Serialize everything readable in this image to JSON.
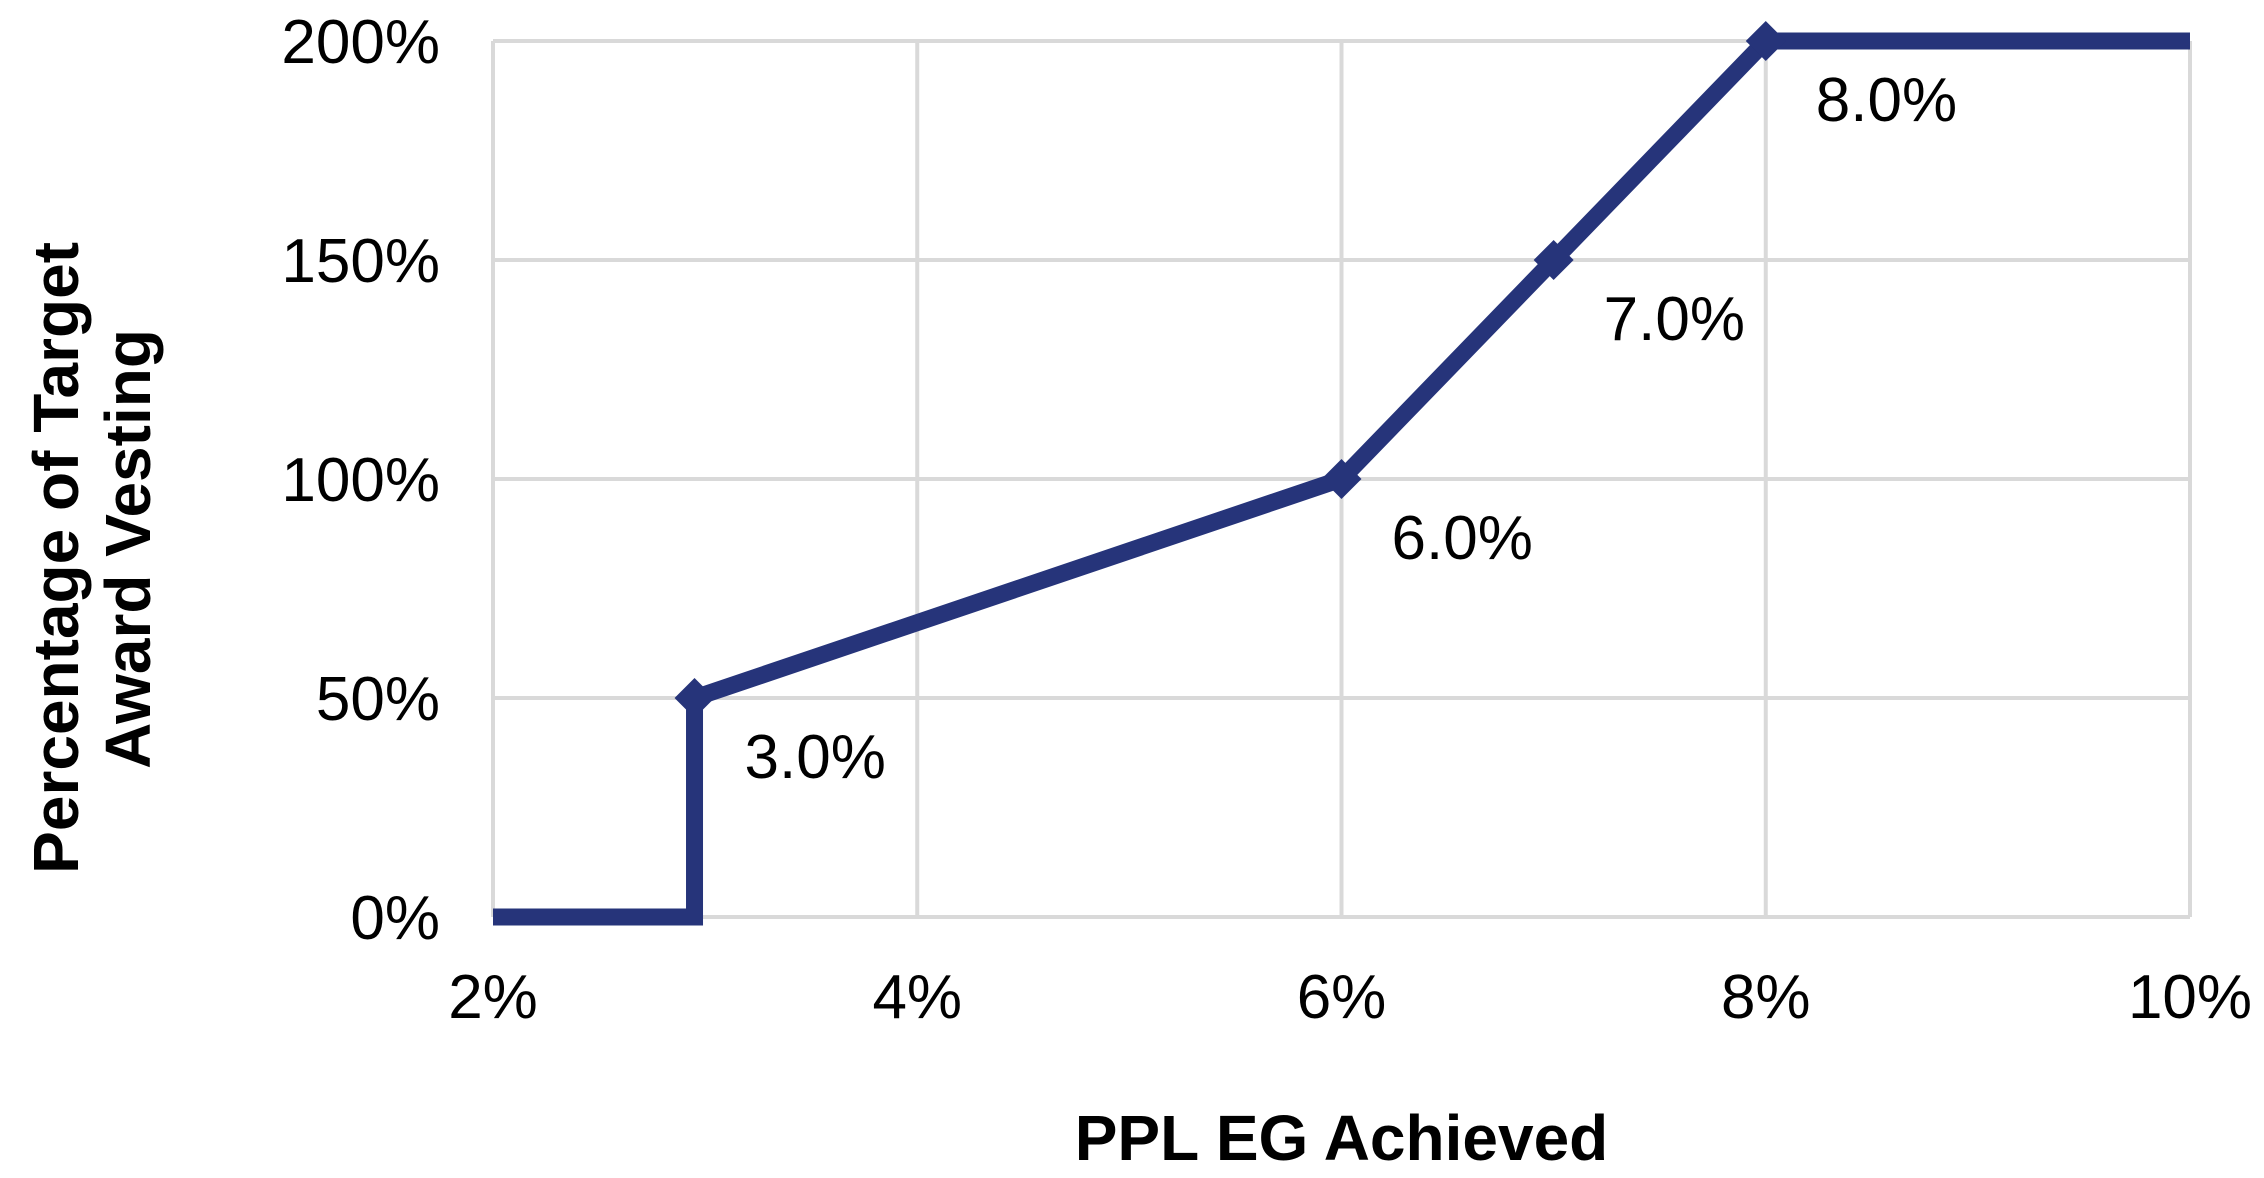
{
  "chart_data": {
    "type": "line",
    "title": "",
    "xlabel": "PPL EG Achieved",
    "ylabel_lines": [
      "Percentage of Target",
      "Award Vesting"
    ],
    "xlim": [
      2,
      10
    ],
    "ylim": [
      0,
      200
    ],
    "x_ticks": [
      2,
      4,
      6,
      8,
      10
    ],
    "x_tick_labels": [
      "2%",
      "4%",
      "6%",
      "8%",
      "10%"
    ],
    "y_ticks": [
      0,
      50,
      100,
      150,
      200
    ],
    "y_tick_labels": [
      "0%",
      "50%",
      "100%",
      "150%",
      "200%"
    ],
    "grid": true,
    "legend": "none",
    "series": [
      {
        "color": "#26347a",
        "points": [
          {
            "x": 2,
            "y": 0
          },
          {
            "x": 2.95,
            "y": 0
          },
          {
            "x": 2.95,
            "y": 50
          },
          {
            "x": 6,
            "y": 100
          },
          {
            "x": 7,
            "y": 150
          },
          {
            "x": 8,
            "y": 200
          },
          {
            "x": 10,
            "y": 200
          }
        ],
        "markers": [
          {
            "x": 2.95,
            "y": 50,
            "label": "3.0%"
          },
          {
            "x": 6,
            "y": 100,
            "label": "6.0%"
          },
          {
            "x": 7,
            "y": 150,
            "label": "7.0%"
          },
          {
            "x": 8,
            "y": 200,
            "label": "8.0%"
          }
        ]
      }
    ],
    "grid_color": "#d9d9d9"
  }
}
